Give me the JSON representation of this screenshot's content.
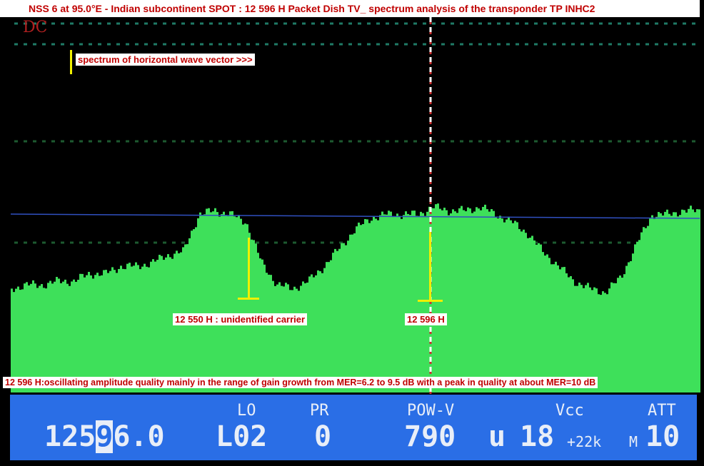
{
  "title": "NSS 6 at 95.0°E - Indian subcontinent SPOT : 12 596 H Packet Dish TV_ spectrum analysis of the transponder TP INHC2",
  "screen_mark": "DC",
  "annotations": {
    "wave": "spectrum of horizontal wave vector >>>",
    "carrier": "12 550 H : unidentified carrier",
    "tp": "12 596 H",
    "quality": "12 596 H:oscillating amplitude quality mainly in the range of gain growth from MER=6.2 to 9.5 dB with a peak in quality at about MER=10 dB"
  },
  "panel": {
    "freq_a": "125",
    "freq_cursor": "9",
    "freq_b": "6.0",
    "lo_label": "LO",
    "lo_value": "L02",
    "pr_label": "PR",
    "pr_value": "0",
    "pow_label": "POW-V",
    "pow_value": "790",
    "unit": "u",
    "vcc_label": "Vcc",
    "vcc_value": "18",
    "tone": "+22k",
    "mode": "M",
    "att_label": "ATT",
    "att_value": "10"
  },
  "colors": {
    "spectrum": "#3ee05a",
    "panel": "#2a6ee6",
    "marker": "#f0f000",
    "label_text": "#c00000"
  },
  "spectrum_profile": [
    0.28,
    0.29,
    0.29,
    0.3,
    0.3,
    0.32,
    0.32,
    0.34,
    0.34,
    0.35,
    0.37,
    0.38,
    0.48,
    0.49,
    0.48,
    0.46,
    0.35,
    0.29,
    0.28,
    0.3,
    0.34,
    0.39,
    0.44,
    0.47,
    0.48,
    0.48,
    0.48,
    0.5,
    0.49,
    0.49,
    0.5,
    0.48,
    0.46,
    0.43,
    0.38,
    0.34,
    0.3,
    0.28,
    0.27,
    0.31,
    0.4,
    0.48,
    0.48,
    0.49,
    0.49
  ]
}
